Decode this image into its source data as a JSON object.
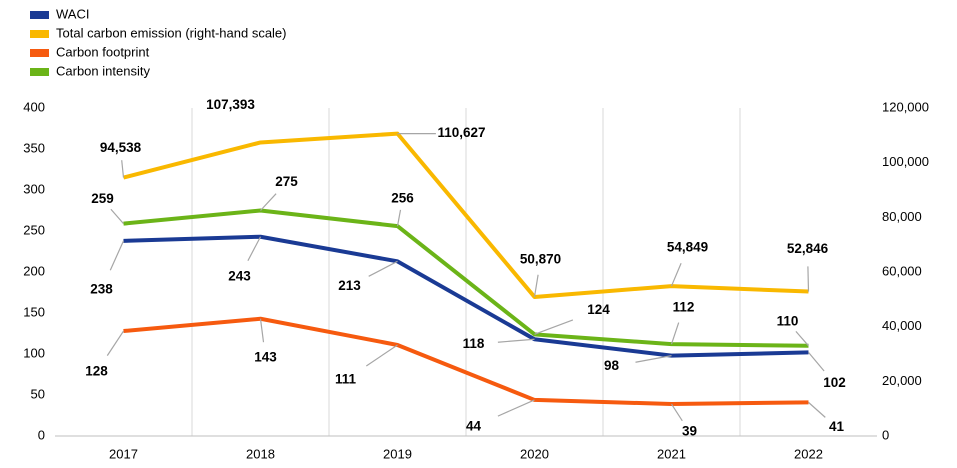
{
  "chart_data": {
    "type": "line",
    "categories": [
      "2017",
      "2018",
      "2019",
      "2020",
      "2021",
      "2022"
    ],
    "series": [
      {
        "name": "WACI",
        "color": "#1a3a94",
        "values": [
          238,
          243,
          213,
          118,
          98,
          102
        ]
      },
      {
        "name": "Total carbon emission (right-hand scale)",
        "color": "#f9b800",
        "axis": "y2",
        "values": [
          94538,
          107393,
          110627,
          50870,
          54849,
          52846
        ],
        "value_labels": [
          "94,538",
          "107,393",
          "110,627",
          "50,870",
          "54,849",
          "52,846"
        ]
      },
      {
        "name": "Carbon footprint",
        "color": "#f65a0f",
        "values": [
          128,
          143,
          111,
          44,
          39,
          41
        ]
      },
      {
        "name": "Carbon intensity",
        "color": "#6bb418",
        "values": [
          259,
          275,
          256,
          124,
          112,
          110
        ]
      }
    ],
    "ylim": [
      0,
      400
    ],
    "yticks": [
      0,
      50,
      100,
      150,
      200,
      250,
      300,
      350,
      400
    ],
    "y2lim": [
      0,
      120000
    ],
    "y2ticks": [
      0,
      {
        "value": 20000,
        "label": "20,000"
      },
      {
        "value": 40000,
        "label": "40,000"
      },
      {
        "value": 60000,
        "label": "60,000"
      },
      {
        "value": 80000,
        "label": "80,000"
      },
      {
        "value": 100000,
        "label": "100,000"
      },
      {
        "value": 120000,
        "label": "120,000"
      }
    ],
    "grid": true,
    "legend": "top-left"
  }
}
